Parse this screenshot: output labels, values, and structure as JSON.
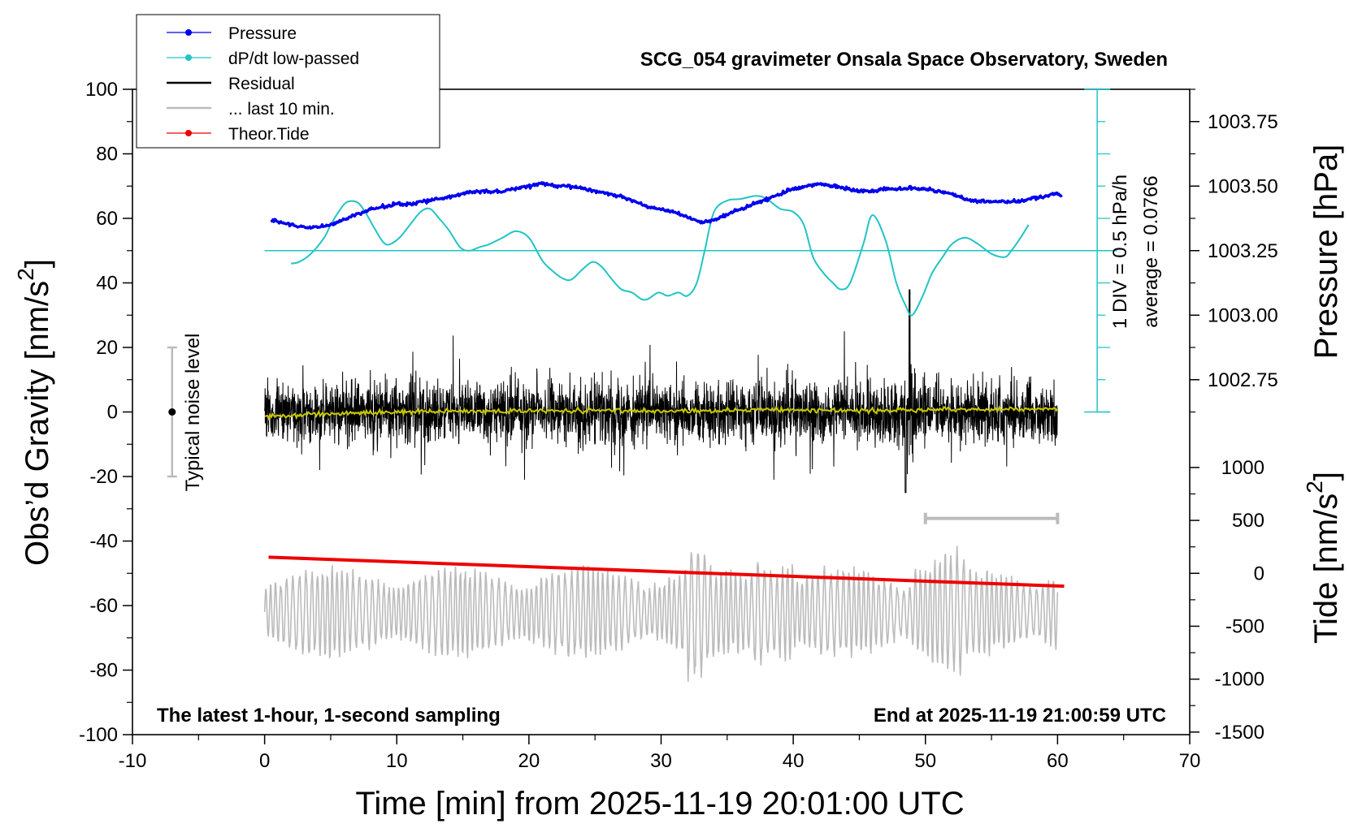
{
  "chart_data": {
    "type": "line",
    "title": "SCG_054 gravimeter Onsala Space Observatory, Sweden",
    "footer_left": "The latest 1-hour, 1-second sampling",
    "footer_right": "End at 2025-11-19 21:00:59 UTC",
    "xlabel": "Time [min] from 2025-11-19 20:01:00 UTC",
    "ylabel_left_main": "Obs’d Gravity [nm/s",
    "ylabel_left_sup": "2",
    "ylabel_left_end": "]",
    "ylabel_right_pressure": "Pressure [hPa]",
    "ylabel_right_tide_main": "Tide [nm/s",
    "ylabel_right_tide_sup": "2",
    "ylabel_right_tide_end": "]",
    "xlim": [
      -10,
      70
    ],
    "xticks": [
      "-10",
      "0",
      "10",
      "20",
      "30",
      "40",
      "50",
      "60",
      "70"
    ],
    "ylim_left": [
      -100,
      100
    ],
    "yticks_left": [
      "100",
      "80",
      "60",
      "40",
      "20",
      "0",
      "-20",
      "-40",
      "-60",
      "-80",
      "-100"
    ],
    "pressure_ticks": [
      "1003.75",
      "1003.50",
      "1003.25",
      "1003.00",
      "1002.75"
    ],
    "pressure_tick_values": [
      1003.75,
      1003.5,
      1003.25,
      1003.0,
      1002.75
    ],
    "tide_ticks": [
      "1000",
      "500",
      "0",
      "-500",
      "-1000",
      "-1500"
    ],
    "tide_tick_values": [
      1000,
      500,
      0,
      -500,
      -1000,
      -1500
    ],
    "grid": false,
    "legend_placement": "top-left",
    "legend": [
      {
        "label": "Pressure",
        "color": "#0000ee",
        "marker": true
      },
      {
        "label": "dP/dt low-passed",
        "color": "#22c4c4",
        "marker": true
      },
      {
        "label": "Residual",
        "color": "#000000",
        "marker": false
      },
      {
        "label": "... last 10 min.",
        "color": "#bbbbbb",
        "marker": false
      },
      {
        "label": "Theor.Tide",
        "color": "#ee0000",
        "marker": true
      }
    ],
    "dpdt_scale_label": "1 DIV = 0.5 hPa/h",
    "dpdt_average_label": "average = 0.0766",
    "noise_label": "Typical noise level",
    "noise_range": [
      -20,
      20
    ],
    "noise_x": -7,
    "last10_range": [
      50,
      60
    ],
    "last10_y": -33,
    "pressure": {
      "x": [
        0.5,
        2,
        3,
        4,
        5,
        6,
        7,
        8,
        9,
        10,
        11,
        12,
        13,
        14,
        15,
        16,
        17,
        18,
        19,
        20,
        21,
        22,
        23,
        24,
        25,
        26,
        27,
        28,
        29,
        30,
        31,
        32,
        33,
        34,
        35,
        36,
        37,
        38,
        39,
        40,
        41,
        42,
        43,
        44,
        45,
        46,
        47,
        48,
        49,
        50,
        51,
        52,
        53,
        54,
        55,
        56,
        57,
        58,
        59,
        60,
        60.3
      ],
      "y": [
        1003.37,
        1003.35,
        1003.34,
        1003.34,
        1003.35,
        1003.37,
        1003.39,
        1003.41,
        1003.42,
        1003.43,
        1003.43,
        1003.44,
        1003.45,
        1003.46,
        1003.47,
        1003.48,
        1003.48,
        1003.48,
        1003.49,
        1003.5,
        1003.51,
        1003.5,
        1003.5,
        1003.49,
        1003.48,
        1003.47,
        1003.46,
        1003.44,
        1003.42,
        1003.41,
        1003.4,
        1003.38,
        1003.36,
        1003.37,
        1003.39,
        1003.41,
        1003.43,
        1003.45,
        1003.47,
        1003.49,
        1003.5,
        1003.51,
        1003.5,
        1003.49,
        1003.48,
        1003.48,
        1003.49,
        1003.49,
        1003.49,
        1003.49,
        1003.48,
        1003.47,
        1003.45,
        1003.44,
        1003.44,
        1003.44,
        1003.44,
        1003.45,
        1003.46,
        1003.47,
        1003.46
      ]
    },
    "dpdt": {
      "baseline_y": 50,
      "x": [
        2,
        2.6,
        3.5,
        4.5,
        5,
        5.6,
        6.2,
        7,
        7.6,
        8.3,
        9,
        9.5,
        10.2,
        11,
        11.8,
        12.5,
        13.2,
        14,
        14.8,
        15.5,
        16.2,
        17,
        18,
        19,
        20,
        21,
        21.7,
        22.5,
        23.2,
        24,
        24.8,
        25.5,
        26.3,
        27,
        27.8,
        28.5,
        29,
        29.8,
        30.5,
        31.3,
        32,
        32.7,
        33.3,
        34,
        35,
        36,
        37.2,
        38,
        39,
        40,
        40.8,
        41.5,
        42.3,
        43,
        43.6,
        44.3,
        45.3,
        46,
        47,
        47.8,
        48.5,
        49,
        49.8,
        50.5,
        51.3,
        52,
        53,
        54,
        55,
        56,
        56.5,
        57.2,
        57.8
      ],
      "y": [
        46,
        46.5,
        49,
        54,
        58,
        62,
        65,
        65,
        62,
        57,
        52.5,
        52,
        54,
        58,
        62,
        63,
        60,
        56,
        51,
        50,
        51,
        52,
        54,
        56,
        54,
        47,
        44,
        41.5,
        41,
        44,
        46.5,
        45,
        41,
        38,
        37,
        35,
        35,
        37,
        36,
        37,
        36,
        40,
        50,
        62,
        65.5,
        66,
        67,
        66,
        63,
        62,
        58,
        48,
        43,
        40,
        38,
        40,
        52,
        61,
        53,
        40,
        33,
        30,
        36,
        43,
        48,
        52,
        54,
        52,
        49,
        48,
        50,
        54,
        58
      ]
    },
    "residual": {
      "x_start": 0,
      "x_end": 60,
      "typical_range": [
        -20,
        20
      ],
      "peak_max": 38,
      "peak_min": -25,
      "peak_x": 48.8
    },
    "residual_smooth": {
      "x": [
        0,
        5,
        10,
        15,
        20,
        25,
        30,
        35,
        40,
        45,
        50,
        55,
        60
      ],
      "y": [
        -1.5,
        -0.5,
        0,
        0.3,
        0.3,
        0.4,
        0.3,
        0.5,
        0.6,
        0.4,
        0.6,
        0.8,
        0.9
      ]
    },
    "last10": {
      "x_start": 0,
      "x_end": 60,
      "center_y": -62,
      "typical_amplitude": 15,
      "max_y": -38,
      "min_y": -84
    },
    "tide": {
      "x": [
        0.3,
        60.5
      ],
      "y": [
        -45,
        -54
      ]
    },
    "colors": {
      "pressure": "#0000ee",
      "dpdt": "#22c4c4",
      "residual": "#000000",
      "residual_smooth": "#c8c800",
      "last10": "#bbbbbb",
      "tide": "#ee0000"
    }
  }
}
